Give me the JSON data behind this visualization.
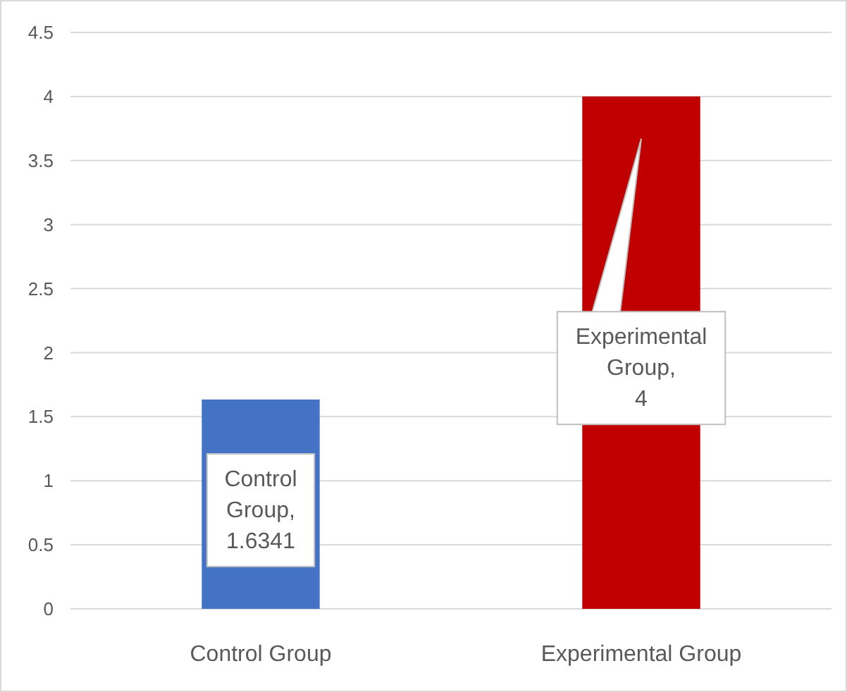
{
  "chart_data": {
    "type": "bar",
    "categories": [
      "Control Group",
      "Experimental Group"
    ],
    "values": [
      1.6341,
      4
    ],
    "colors": [
      "#4472c4",
      "#c00000"
    ],
    "value_labels": [
      "Control Group, 1.6341",
      "Experimental Group, 4"
    ],
    "ylim": [
      0,
      4.5
    ],
    "yticks": [
      0,
      0.5,
      1,
      1.5,
      2,
      2.5,
      3,
      3.5,
      4,
      4.5
    ],
    "grid": "y"
  }
}
